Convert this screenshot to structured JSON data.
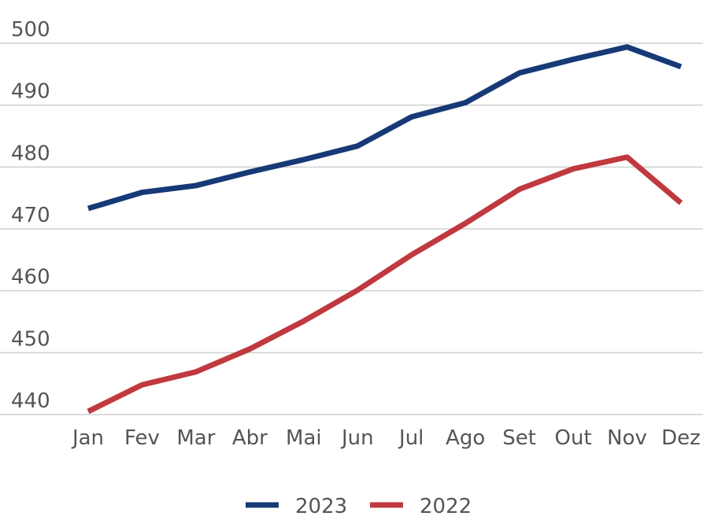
{
  "chart_data": {
    "type": "line",
    "categories": [
      "Jan",
      "Fev",
      "Mar",
      "Abr",
      "Mai",
      "Jun",
      "Jul",
      "Ago",
      "Set",
      "Out",
      "Nov",
      "Dez"
    ],
    "series": [
      {
        "name": "2023",
        "color": "#173a76",
        "values": [
          473.3,
          475.9,
          477.0,
          479.2,
          481.2,
          483.4,
          488.1,
          490.4,
          495.2,
          497.4,
          499.4,
          496.2
        ]
      },
      {
        "name": "2022",
        "color": "#c0393f",
        "values": [
          440.5,
          444.8,
          446.9,
          450.6,
          455.1,
          460.1,
          465.8,
          470.9,
          476.4,
          479.7,
          481.6,
          474.2
        ]
      }
    ],
    "ylim": [
      440,
      500
    ],
    "yticks": [
      440,
      450,
      460,
      470,
      480,
      490,
      500
    ],
    "grid": true,
    "legend": "bottom"
  }
}
